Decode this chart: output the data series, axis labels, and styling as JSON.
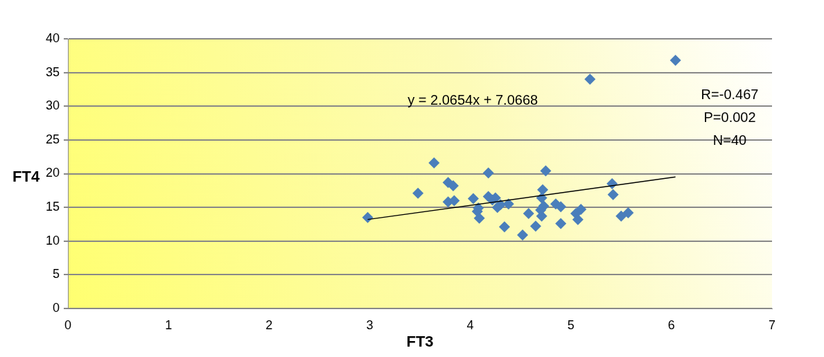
{
  "chart_data": {
    "type": "scatter",
    "xlabel": "FT3",
    "ylabel": "FT4",
    "series": [
      {
        "color": "#4a7ebb",
        "marker": "diamond",
        "x": [
          2.98,
          3.48,
          3.64,
          3.78,
          3.83,
          3.78,
          3.84,
          4.03,
          4.07,
          4.09,
          4.18,
          4.18,
          4.25,
          4.27,
          4.3,
          4.34,
          4.38,
          4.52,
          4.58,
          4.65,
          4.71,
          4.73,
          4.71,
          4.72,
          4.75,
          4.85,
          4.9,
          4.9,
          5.05,
          5.1,
          5.07,
          5.19,
          5.41,
          5.42,
          5.5,
          5.57,
          6.04,
          4.08,
          4.22,
          4.7
        ],
        "values": [
          13.5,
          17.1,
          21.6,
          18.7,
          18.2,
          15.8,
          16.0,
          16.3,
          14.4,
          13.4,
          20.1,
          16.6,
          16.4,
          15.0,
          15.4,
          12.1,
          15.5,
          10.9,
          14.1,
          12.2,
          13.7,
          15.2,
          16.4,
          17.6,
          20.4,
          15.5,
          15.1,
          12.6,
          14.1,
          14.7,
          13.2,
          34.0,
          18.5,
          16.9,
          13.7,
          14.2,
          36.8,
          14.9,
          16.1,
          14.6
        ]
      },
      {
        "type": "line",
        "color": "#000000",
        "marker": "none",
        "x": [
          2.98,
          6.04
        ],
        "values": [
          13.2,
          19.5
        ]
      }
    ],
    "xlim": [
      0,
      7
    ],
    "xticks": [
      0,
      1,
      2,
      3,
      4,
      5,
      6,
      7
    ],
    "ylim": [
      0,
      40
    ],
    "yticks": [
      0,
      5,
      10,
      15,
      20,
      25,
      30,
      35,
      40
    ],
    "grid": "y",
    "legend": false,
    "annotations": [
      "y = 2.0654x + 7.0668",
      "R=-0.467",
      "P=0.002",
      "N=40"
    ]
  }
}
